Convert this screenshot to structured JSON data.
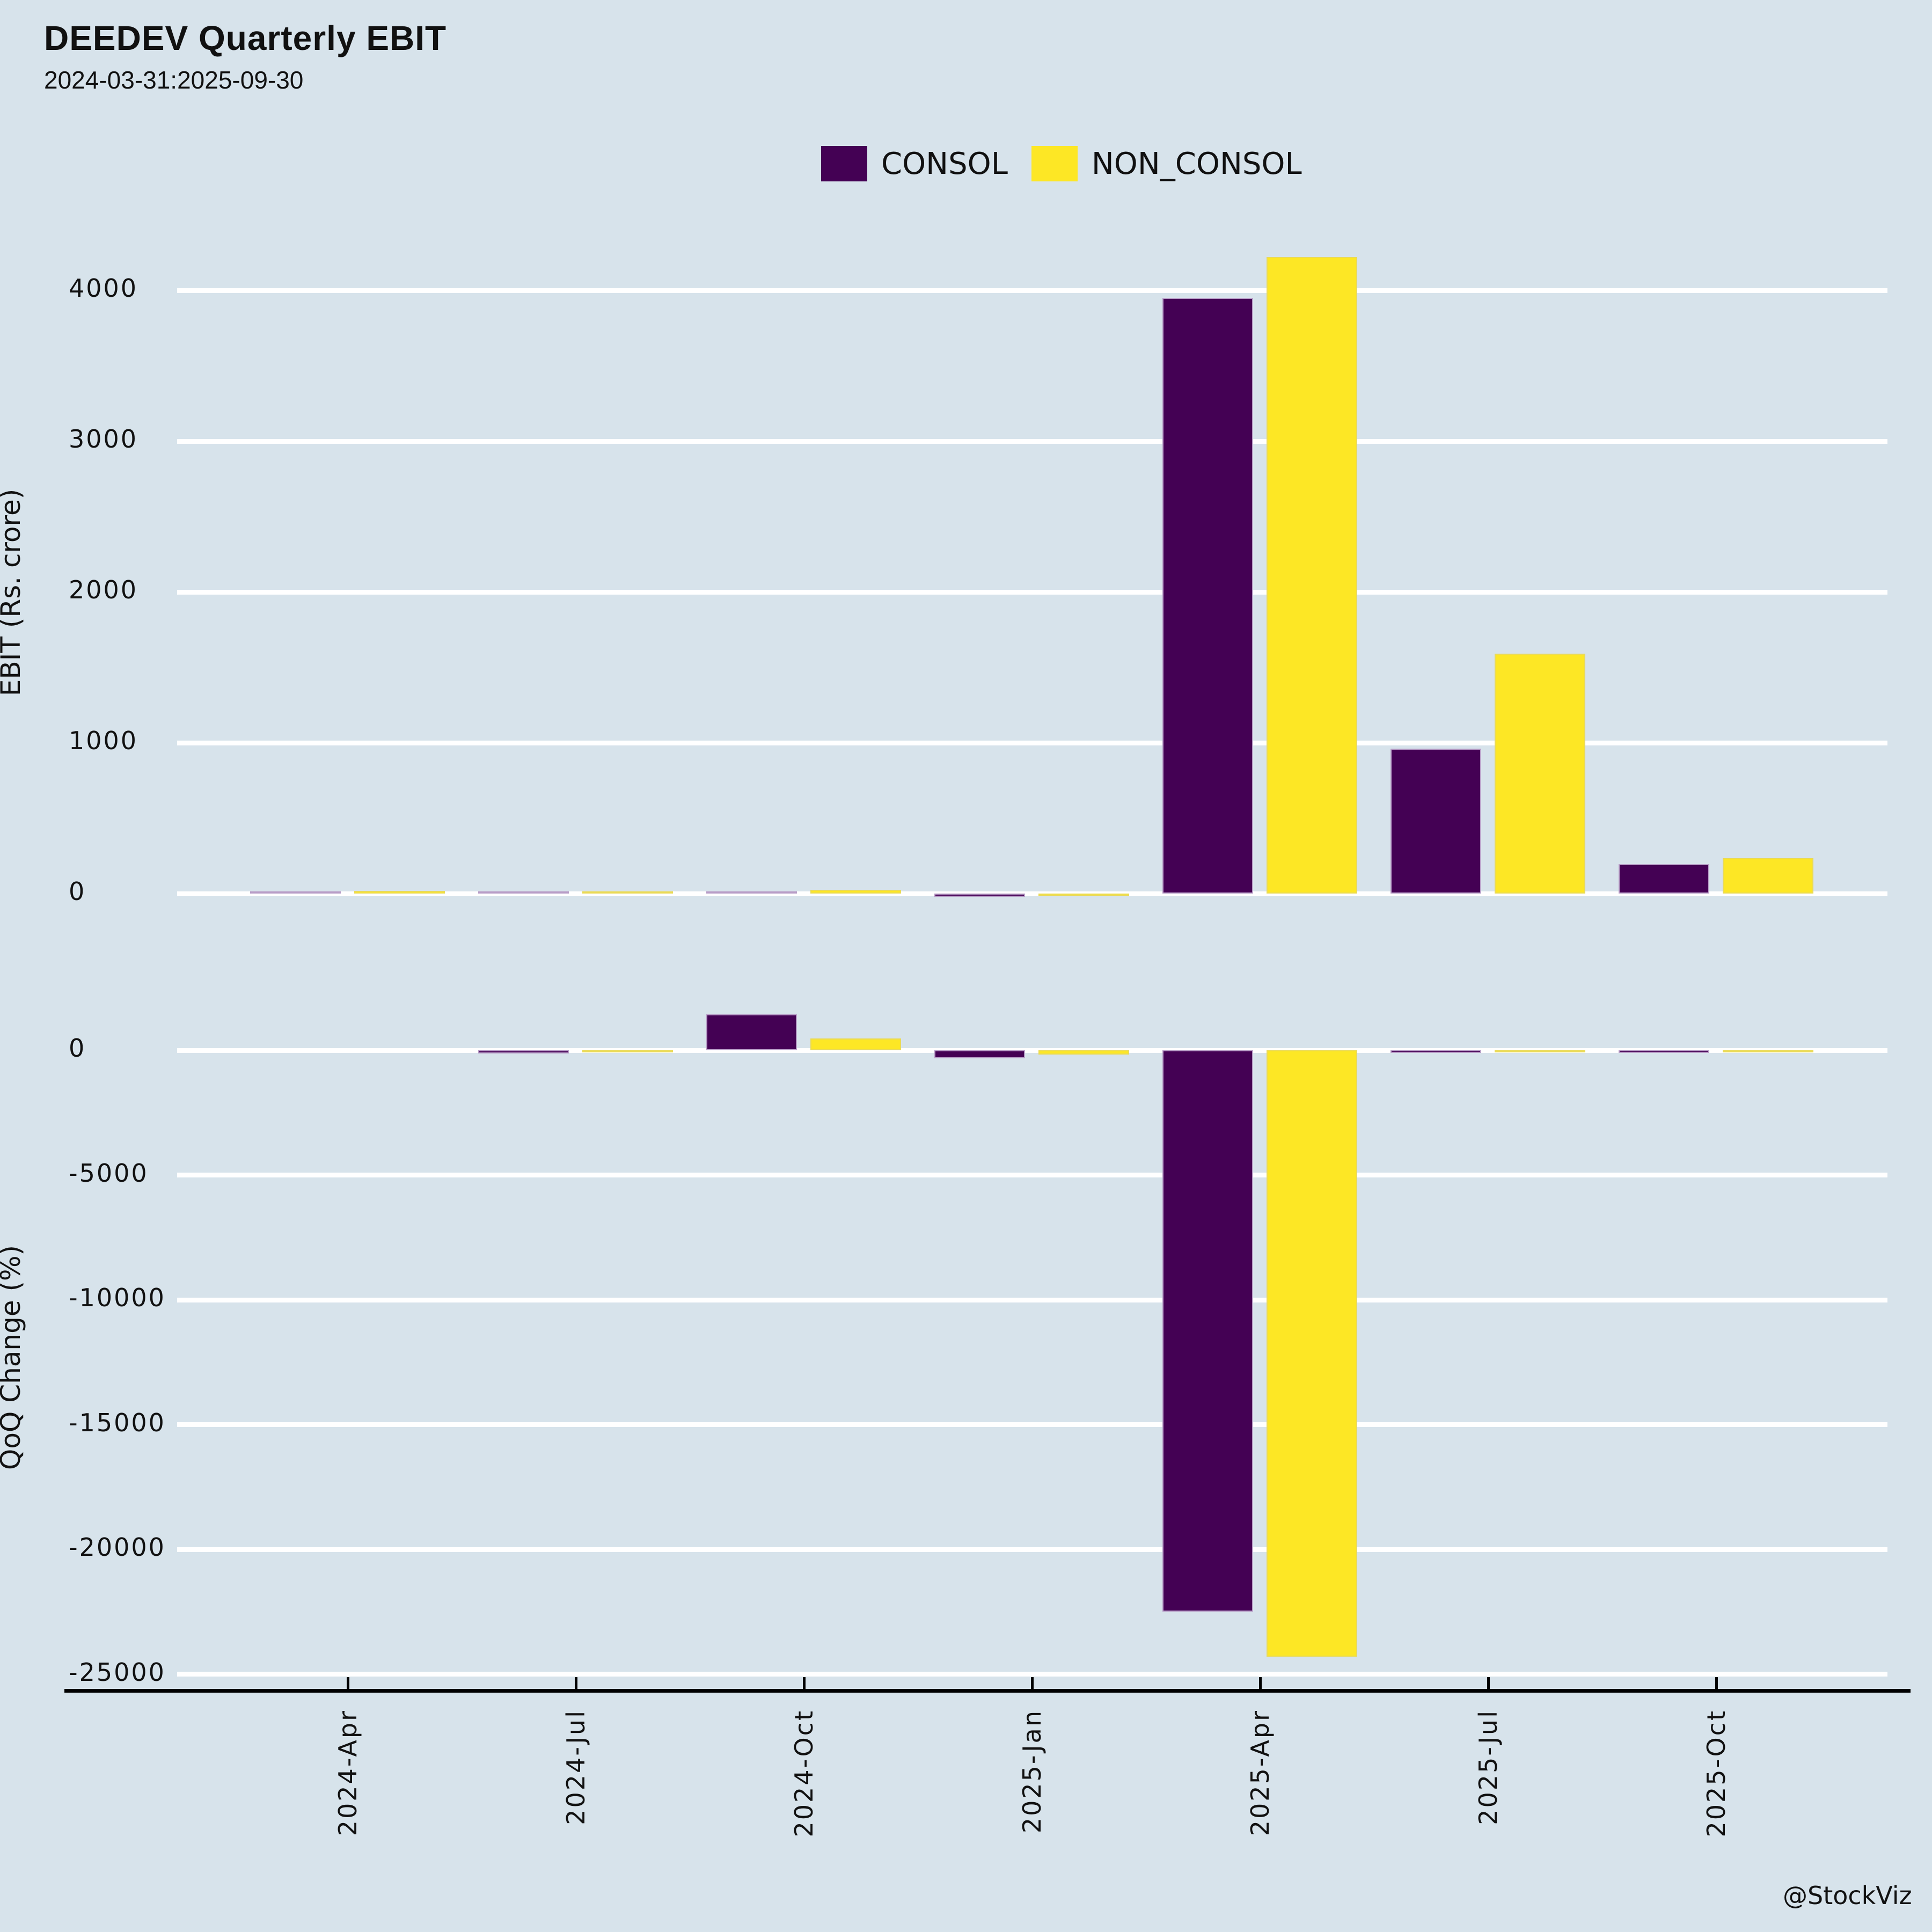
{
  "title": "DEEDEV Quarterly EBIT",
  "subtitle": "2024-03-31:2025-09-30",
  "watermark": "@StockViz",
  "colors": {
    "background": "#d7e3eb",
    "gridline": "#ffffff",
    "axis": "#000000",
    "text": "#111111",
    "consol": "#440154",
    "non_consol": "#fde725",
    "consol_edge": "rgba(205,185,220,0.85)",
    "non_consol_edge": "rgba(230,215,95,0.85)"
  },
  "legend": {
    "items": [
      {
        "label": "CONSOL",
        "color_key": "consol"
      },
      {
        "label": "NON_CONSOL",
        "color_key": "non_consol"
      }
    ]
  },
  "chart_data": [
    {
      "type": "bar",
      "panel": "top",
      "title": "",
      "xlabel": "",
      "ylabel": "EBIT (Rs. crore)",
      "grid": true,
      "legend_position": "top-center",
      "categories": [
        "2024-Apr",
        "2024-Jul",
        "2024-Oct",
        "2025-Jan",
        "2025-Apr",
        "2025-Jul",
        "2025-Oct"
      ],
      "yticks": [
        0,
        1000,
        2000,
        3000,
        4000
      ],
      "ylim": [
        -150,
        4380
      ],
      "series": [
        {
          "name": "CONSOL",
          "values": [
            15,
            3,
            9,
            -20,
            3950,
            960,
            195
          ]
        },
        {
          "name": "NON_CONSOL",
          "values": [
            18,
            4,
            25,
            -17,
            4220,
            1590,
            235
          ]
        }
      ]
    },
    {
      "type": "bar",
      "panel": "bottom",
      "title": "",
      "xlabel": "",
      "ylabel": "QoQ Change (%)",
      "grid": true,
      "categories": [
        "2024-Apr",
        "2024-Jul",
        "2024-Oct",
        "2025-Jan",
        "2025-Apr",
        "2025-Jul",
        "2025-Oct"
      ],
      "yticks": [
        0,
        -5000,
        -10000,
        -15000,
        -20000,
        -25000
      ],
      "ylim": [
        -25600,
        1800
      ],
      "series": [
        {
          "name": "CONSOL",
          "values": [
            null,
            -130,
            1440,
            -315,
            -22500,
            -100,
            -105
          ]
        },
        {
          "name": "NON_CONSOL",
          "values": [
            null,
            -85,
            475,
            -170,
            -24300,
            -70,
            -80
          ]
        }
      ]
    }
  ]
}
